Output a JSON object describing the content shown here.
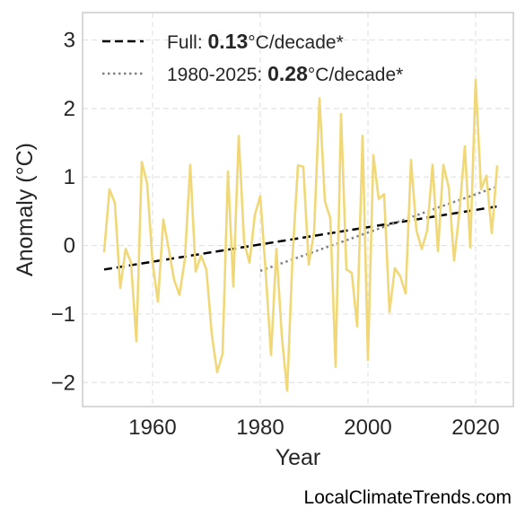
{
  "chart_data": {
    "type": "line",
    "title": "",
    "xlabel": "Year",
    "ylabel": "Anomaly (°C)",
    "xlim": [
      1947,
      2027
    ],
    "ylim": [
      -2.35,
      3.4
    ],
    "x_ticks": [
      1960,
      1980,
      2000,
      2020
    ],
    "y_ticks": [
      -2,
      -1,
      0,
      1,
      2,
      3
    ],
    "y_tick_labels": [
      "−2",
      "−1",
      "0",
      "1",
      "2",
      "3"
    ],
    "grid": true,
    "legend_position": "top-left",
    "legend": [
      {
        "prefix": "Full: ",
        "value": "0.13",
        "suffix": "°C/decade*",
        "style": "dashed",
        "color": "#000000"
      },
      {
        "prefix": "1980-2025: ",
        "value": "0.28",
        "suffix": "°C/decade*",
        "style": "dotted",
        "color": "#808080"
      }
    ],
    "series": [
      {
        "color": "#f0d878",
        "x": [
          1951,
          1952,
          1953,
          1954,
          1955,
          1956,
          1957,
          1958,
          1959,
          1960,
          1961,
          1962,
          1963,
          1964,
          1965,
          1966,
          1967,
          1968,
          1969,
          1970,
          1971,
          1972,
          1973,
          1974,
          1975,
          1976,
          1977,
          1978,
          1979,
          1980,
          1981,
          1982,
          1983,
          1984,
          1985,
          1986,
          1987,
          1988,
          1989,
          1990,
          1991,
          1992,
          1993,
          1994,
          1995,
          1996,
          1997,
          1998,
          1999,
          2000,
          2001,
          2002,
          2003,
          2004,
          2005,
          2006,
          2007,
          2008,
          2009,
          2010,
          2011,
          2012,
          2013,
          2014,
          2015,
          2016,
          2017,
          2018,
          2019,
          2020,
          2021,
          2022,
          2023,
          2024
        ],
        "y": [
          -0.1,
          0.82,
          0.62,
          -0.62,
          -0.05,
          -0.25,
          -1.4,
          1.22,
          0.9,
          -0.25,
          -0.82,
          0.38,
          -0.05,
          -0.5,
          -0.72,
          -0.2,
          1.18,
          -0.38,
          -0.15,
          -0.35,
          -1.3,
          -1.85,
          -1.58,
          1.08,
          -0.6,
          1.6,
          0.05,
          -0.25,
          0.45,
          0.72,
          -0.38,
          -1.6,
          -0.05,
          -1.32,
          -2.12,
          -0.15,
          1.17,
          1.15,
          -0.28,
          0.2,
          2.15,
          0.65,
          0.4,
          -1.77,
          1.92,
          -0.35,
          -0.4,
          -1.18,
          1.6,
          -1.67,
          1.32,
          0.68,
          0.75,
          -0.97,
          -0.33,
          -0.45,
          -0.7,
          1.25,
          0.22,
          -0.05,
          0.22,
          1.18,
          -0.08,
          1.18,
          0.85,
          -0.22,
          0.5,
          1.45,
          -0.03,
          2.42,
          0.82,
          1.02,
          0.18,
          1.17
        ]
      }
    ],
    "trend_lines": [
      {
        "style": "dashed",
        "color": "#000000",
        "x": [
          1951,
          2024
        ],
        "y": [
          -0.35,
          0.57
        ]
      },
      {
        "style": "dotted",
        "color": "#808080",
        "x": [
          1980,
          2024
        ],
        "y": [
          -0.37,
          0.86
        ]
      }
    ]
  },
  "watermark": "LocalClimateTrends.com"
}
